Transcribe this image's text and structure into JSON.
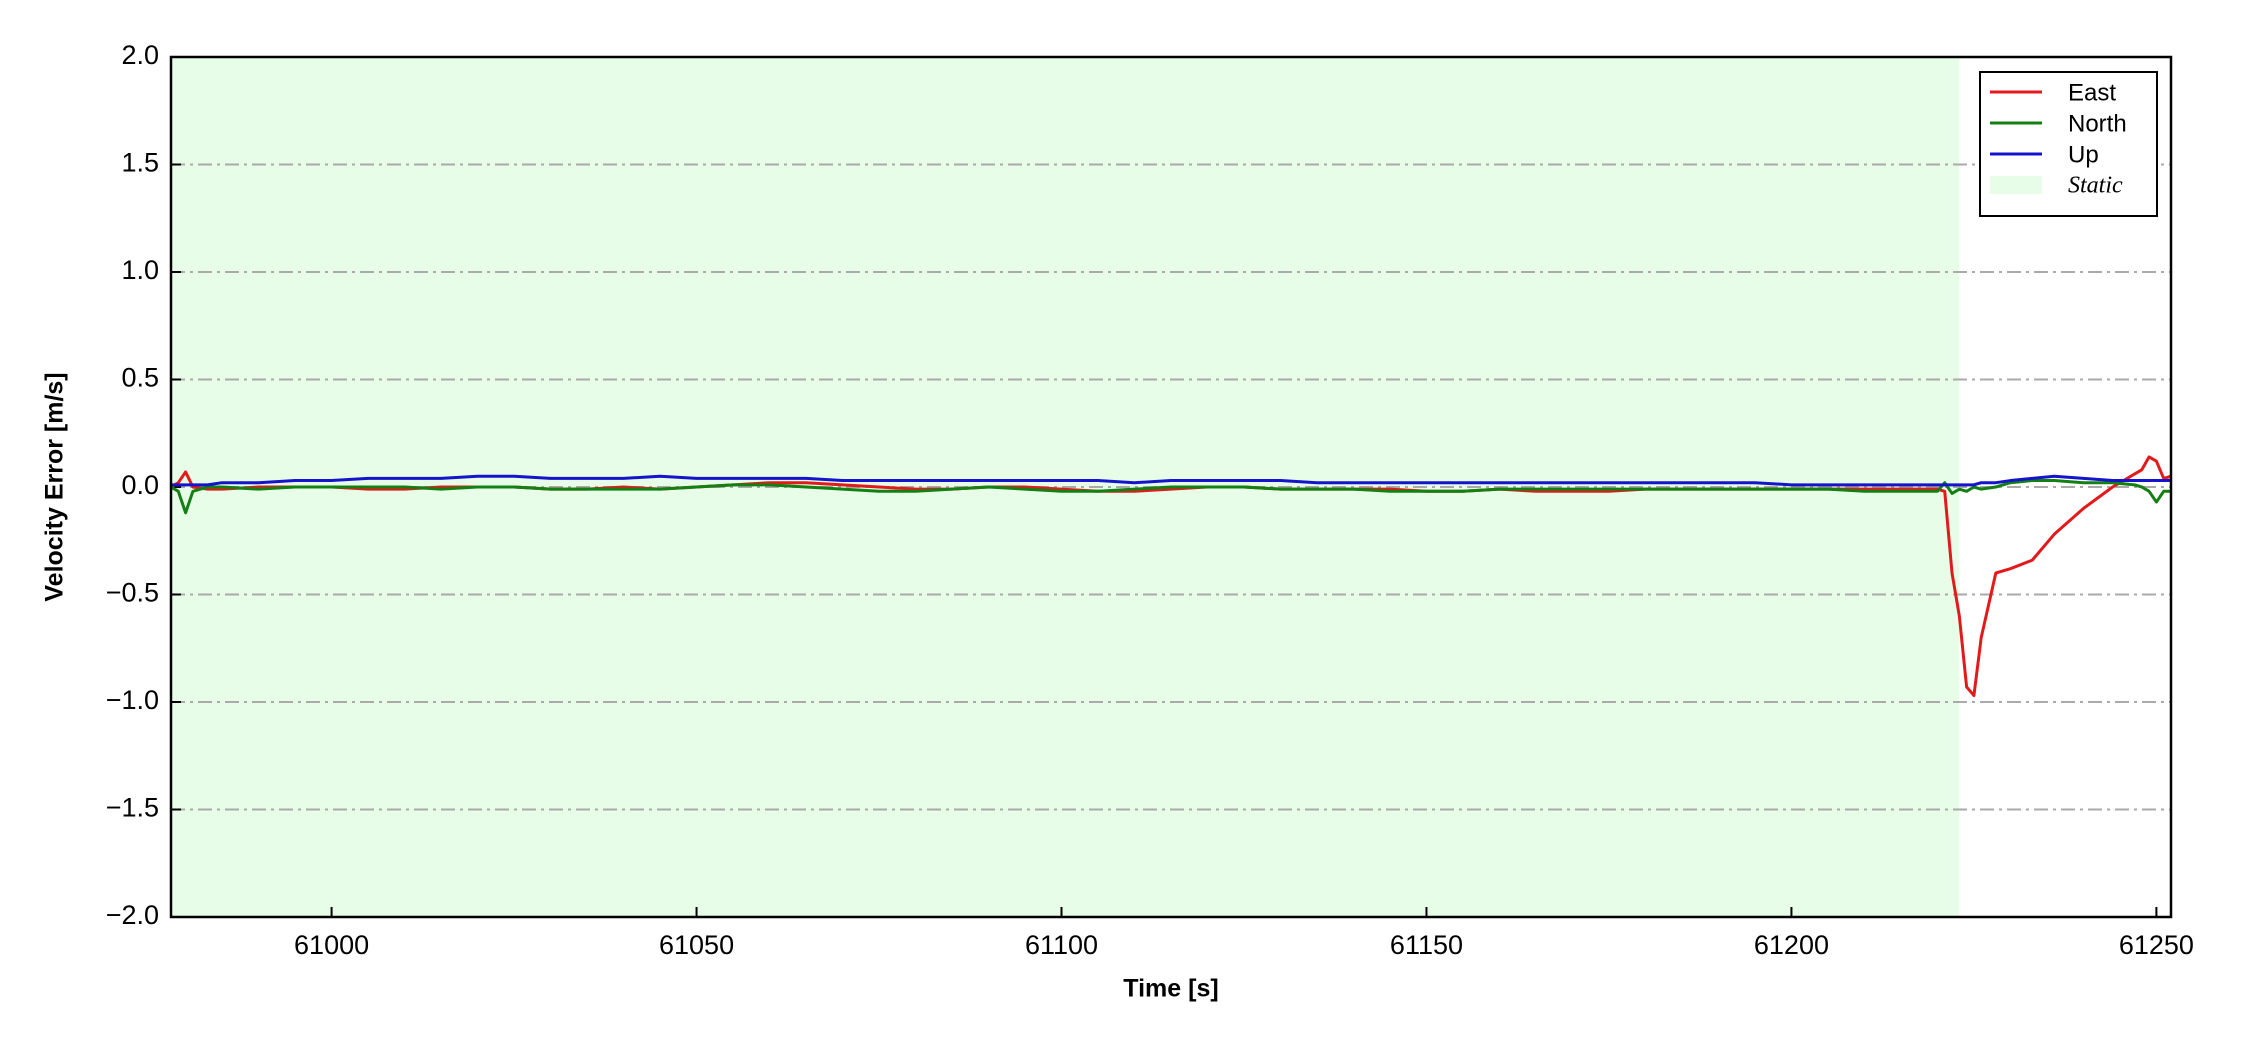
{
  "chart_data": {
    "type": "line",
    "xlabel": "Time [s]",
    "ylabel": "Velocity Error [m/s]",
    "x": [
      60978,
      60979,
      60980,
      60981,
      60983,
      60985,
      60990,
      60995,
      61000,
      61005,
      61010,
      61015,
      61020,
      61025,
      61030,
      61035,
      61040,
      61045,
      61050,
      61055,
      61060,
      61065,
      61070,
      61075,
      61080,
      61085,
      61090,
      61095,
      61100,
      61105,
      61110,
      61115,
      61120,
      61125,
      61130,
      61135,
      61140,
      61145,
      61150,
      61155,
      61160,
      61165,
      61170,
      61175,
      61180,
      61185,
      61190,
      61195,
      61200,
      61205,
      61210,
      61215,
      61220,
      61221,
      61222,
      61223,
      61224,
      61225,
      61226,
      61228,
      61230,
      61233,
      61236,
      61240,
      61244,
      61247,
      61248,
      61249,
      61250,
      61251,
      61252
    ],
    "series": [
      {
        "name": "East",
        "color": "#e31a1c",
        "values": [
          0.0,
          0.02,
          0.07,
          0.0,
          -0.01,
          -0.01,
          0.0,
          0.0,
          0.0,
          -0.01,
          -0.01,
          0.0,
          0.0,
          0.0,
          -0.01,
          -0.01,
          0.0,
          -0.01,
          0.0,
          0.01,
          0.02,
          0.02,
          0.01,
          0.0,
          -0.01,
          -0.01,
          0.0,
          0.0,
          -0.01,
          -0.02,
          -0.02,
          -0.01,
          0.0,
          0.0,
          -0.01,
          -0.01,
          -0.01,
          -0.01,
          -0.02,
          -0.02,
          -0.01,
          -0.02,
          -0.02,
          -0.02,
          -0.01,
          -0.01,
          -0.01,
          -0.01,
          -0.01,
          -0.01,
          -0.01,
          -0.01,
          -0.01,
          -0.02,
          -0.4,
          -0.6,
          -0.93,
          -0.97,
          -0.7,
          -0.4,
          -0.38,
          -0.34,
          -0.22,
          -0.1,
          0.0,
          0.06,
          0.08,
          0.14,
          0.12,
          0.04,
          0.05
        ]
      },
      {
        "name": "North",
        "color": "#138013",
        "values": [
          0.0,
          -0.02,
          -0.12,
          -0.02,
          0.0,
          0.0,
          -0.01,
          0.0,
          0.0,
          0.0,
          0.0,
          -0.01,
          0.0,
          0.0,
          -0.01,
          -0.01,
          -0.01,
          -0.01,
          0.0,
          0.01,
          0.01,
          0.0,
          -0.01,
          -0.02,
          -0.02,
          -0.01,
          0.0,
          -0.01,
          -0.02,
          -0.02,
          -0.01,
          0.0,
          0.0,
          0.0,
          -0.01,
          -0.01,
          -0.01,
          -0.02,
          -0.02,
          -0.02,
          -0.01,
          -0.01,
          -0.01,
          -0.01,
          -0.01,
          -0.01,
          -0.01,
          -0.01,
          -0.01,
          -0.01,
          -0.02,
          -0.02,
          -0.02,
          0.02,
          -0.03,
          -0.01,
          -0.02,
          0.0,
          -0.01,
          0.0,
          0.02,
          0.03,
          0.03,
          0.02,
          0.02,
          0.01,
          0.0,
          -0.02,
          -0.07,
          -0.02,
          -0.02
        ]
      },
      {
        "name": "Up",
        "color": "#1414cc",
        "values": [
          0.01,
          0.01,
          0.01,
          0.01,
          0.01,
          0.02,
          0.02,
          0.03,
          0.03,
          0.04,
          0.04,
          0.04,
          0.05,
          0.05,
          0.04,
          0.04,
          0.04,
          0.05,
          0.04,
          0.04,
          0.04,
          0.04,
          0.03,
          0.03,
          0.03,
          0.03,
          0.03,
          0.03,
          0.03,
          0.03,
          0.02,
          0.03,
          0.03,
          0.03,
          0.03,
          0.02,
          0.02,
          0.02,
          0.02,
          0.02,
          0.02,
          0.02,
          0.02,
          0.02,
          0.02,
          0.02,
          0.02,
          0.02,
          0.01,
          0.01,
          0.01,
          0.01,
          0.01,
          0.01,
          0.01,
          0.01,
          0.01,
          0.01,
          0.02,
          0.02,
          0.03,
          0.04,
          0.05,
          0.04,
          0.03,
          0.03,
          0.03,
          0.03,
          0.03,
          0.03,
          0.03
        ]
      }
    ],
    "spans": [
      {
        "name": "Static",
        "color": "#e8fde8",
        "x": [
          60978,
          61223
        ]
      }
    ],
    "xlim": [
      60978,
      61252
    ],
    "xticks": [
      61000,
      61050,
      61100,
      61150,
      61200,
      61250
    ],
    "ylim": [
      -2,
      2
    ],
    "yticks": [
      {
        "value": -2,
        "label": "−2.0"
      },
      {
        "value": -1.5,
        "label": "−1.5"
      },
      {
        "value": -1,
        "label": "−1.0"
      },
      {
        "value": -0.5,
        "label": "−0.5"
      },
      {
        "value": 0,
        "label": "0.0"
      },
      {
        "value": 0.5,
        "label": "0.5"
      },
      {
        "value": 1,
        "label": "1.0"
      },
      {
        "value": 1.5,
        "label": "1.5"
      },
      {
        "value": 2,
        "label": "2.0"
      }
    ],
    "grid": true,
    "legend": "upper right"
  }
}
